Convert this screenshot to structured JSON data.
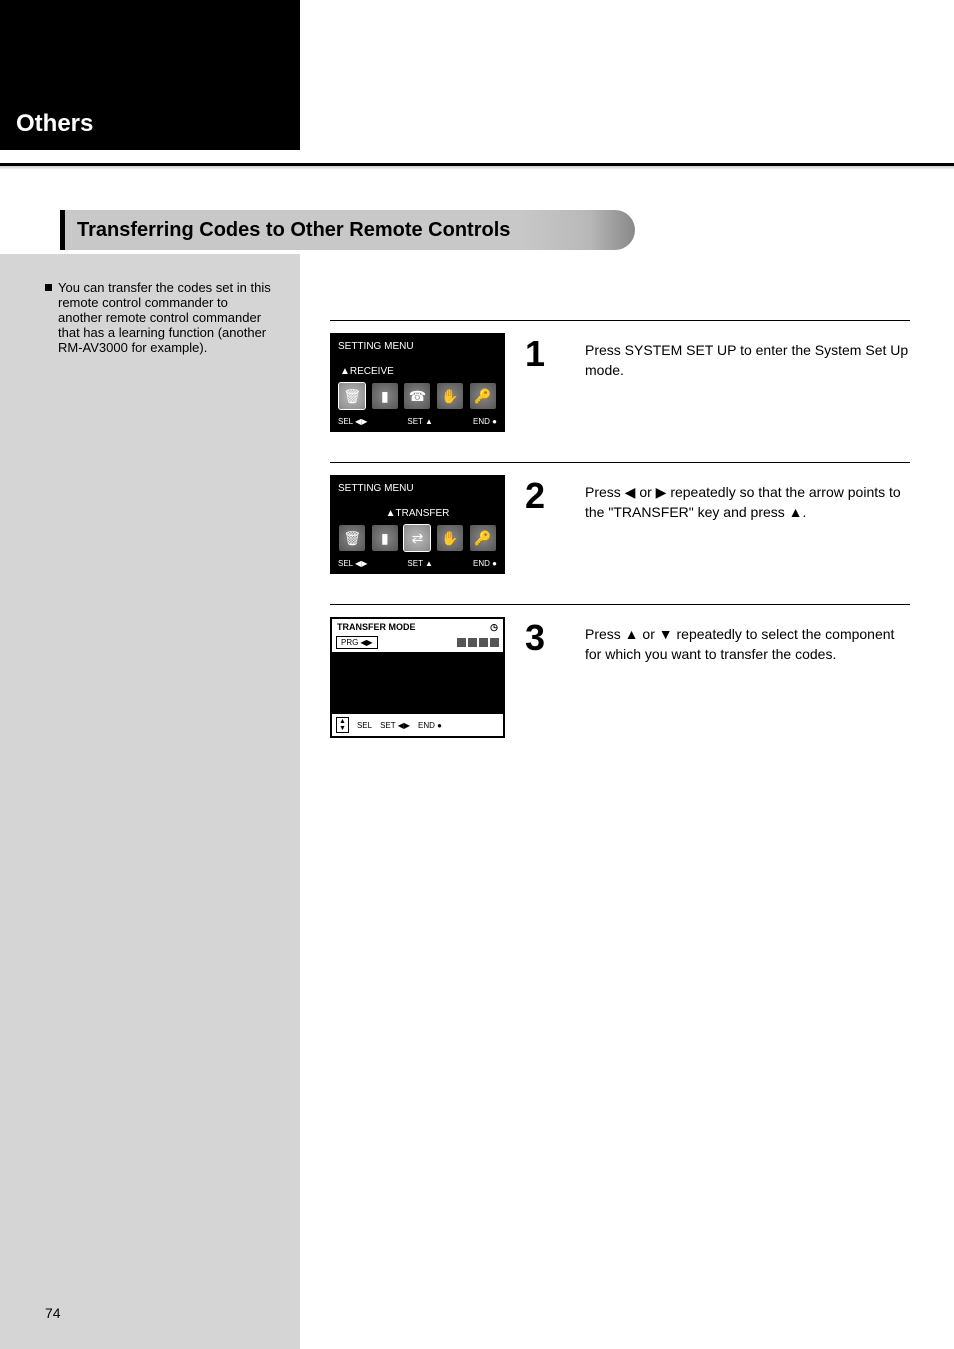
{
  "side_heading": "Others",
  "header": "Transferring Codes to Other Remote Controls",
  "bullet_text": "You can transfer the codes set in this remote control commander to another remote control commander that has a learning function (another RM-AV3000 for example).",
  "steps": [
    {
      "num": "1",
      "text": "Press SYSTEM SET UP to enter the System Set Up mode.",
      "lcd": {
        "title": "SETTING MENU",
        "label_over": "▲RECEIVE",
        "label_right": "",
        "icon_row": [
          "trash",
          "remote",
          "phone",
          "hand",
          "key"
        ],
        "selected": 0,
        "footer": [
          "SEL    ◀▶",
          "SET    ▲",
          "END    ●"
        ]
      }
    },
    {
      "num": "2",
      "text": "Press ◀ or ▶ repeatedly so that the arrow points to the \"TRANSFER\" key and press ▲.",
      "lcd": {
        "title": "SETTING MENU",
        "label_over": "▲TRANSFER",
        "icon_row": [
          "trash",
          "remote",
          "transfer",
          "hand",
          "key"
        ],
        "selected": 2,
        "footer": [
          "SEL    ◀▶",
          "SET    ▲",
          "END    ●"
        ]
      }
    },
    {
      "num": "3",
      "text": "Press ▲ or ▼ repeatedly to select the component for which you want to transfer the codes.",
      "lcd_top_title": "TRANSFER MODE",
      "lcd_row2_label": "PRG",
      "lcd_footer": [
        "SEL",
        "SET    ◀▶",
        "END    ●"
      ]
    }
  ],
  "page_ref": "74"
}
